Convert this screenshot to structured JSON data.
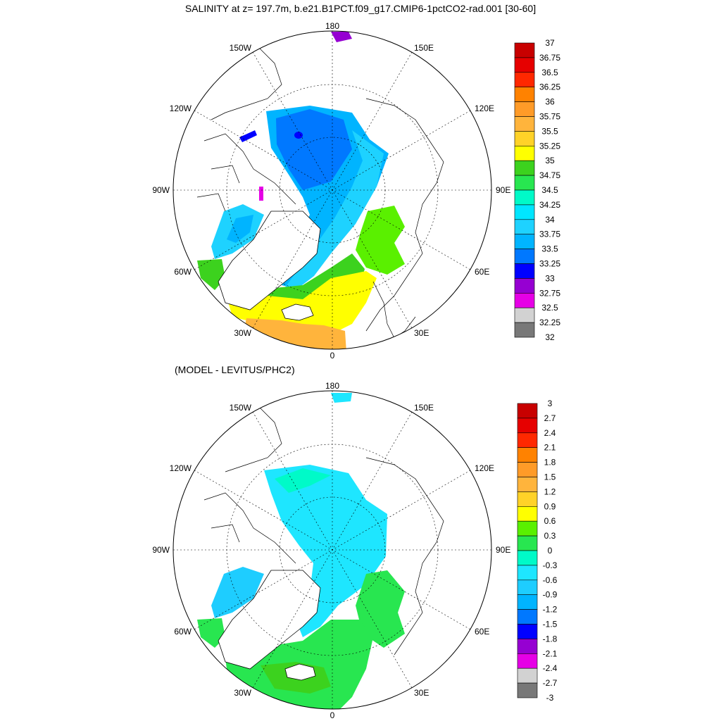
{
  "title": "SALINITY at z= 197.7m, b.e21.B1PCT.f09_g17.CMIP6-1pctCO2-rad.001 [30-60]",
  "subtitle": "(MODEL - LEVITUS/PHC2)",
  "lon_labels": {
    "north": "180",
    "south": "0",
    "west": "90W",
    "east": "90E",
    "nw_upper": "150W",
    "ne_upper": "150E",
    "nw_lower": "120W",
    "ne_lower": "120E",
    "sw_upper": "60W",
    "se_upper": "60E",
    "sw_lower": "30W",
    "se_lower": "30E"
  },
  "top_legend": {
    "labels": [
      "37",
      "36.75",
      "36.5",
      "36.25",
      "36",
      "35.75",
      "35.5",
      "35.25",
      "35",
      "34.75",
      "34.5",
      "34.25",
      "34",
      "33.75",
      "33.5",
      "33.25",
      "33",
      "32.75",
      "32.5",
      "32.25",
      "32"
    ],
    "colors": [
      "#c80000",
      "#e60000",
      "#ff2800",
      "#ff8200",
      "#ff9b28",
      "#ffb43c",
      "#ffd228",
      "#ffff00",
      "#3cd21e",
      "#28e650",
      "#00fac8",
      "#00e6ff",
      "#1ed2ff",
      "#00b4ff",
      "#0078ff",
      "#0000ff",
      "#9600d2",
      "#e600e6",
      "#d2d2d2",
      "#787878"
    ]
  },
  "bottom_legend": {
    "labels": [
      "3",
      "2.7",
      "2.4",
      "2.1",
      "1.8",
      "1.5",
      "1.2",
      "0.9",
      "0.6",
      "0.3",
      "0",
      "-0.3",
      "-0.6",
      "-0.9",
      "-1.2",
      "-1.5",
      "-1.8",
      "-2.1",
      "-2.4",
      "-2.7",
      "-3"
    ],
    "colors": [
      "#c80000",
      "#e60000",
      "#ff2800",
      "#ff8200",
      "#ff9b28",
      "#ffb43c",
      "#ffd228",
      "#ffff00",
      "#5af000",
      "#28e650",
      "#00fac8",
      "#1ee6ff",
      "#1ecdff",
      "#00b4ff",
      "#0078ff",
      "#0000ff",
      "#9600d2",
      "#e600e6",
      "#d2d2d2",
      "#787878"
    ]
  }
}
